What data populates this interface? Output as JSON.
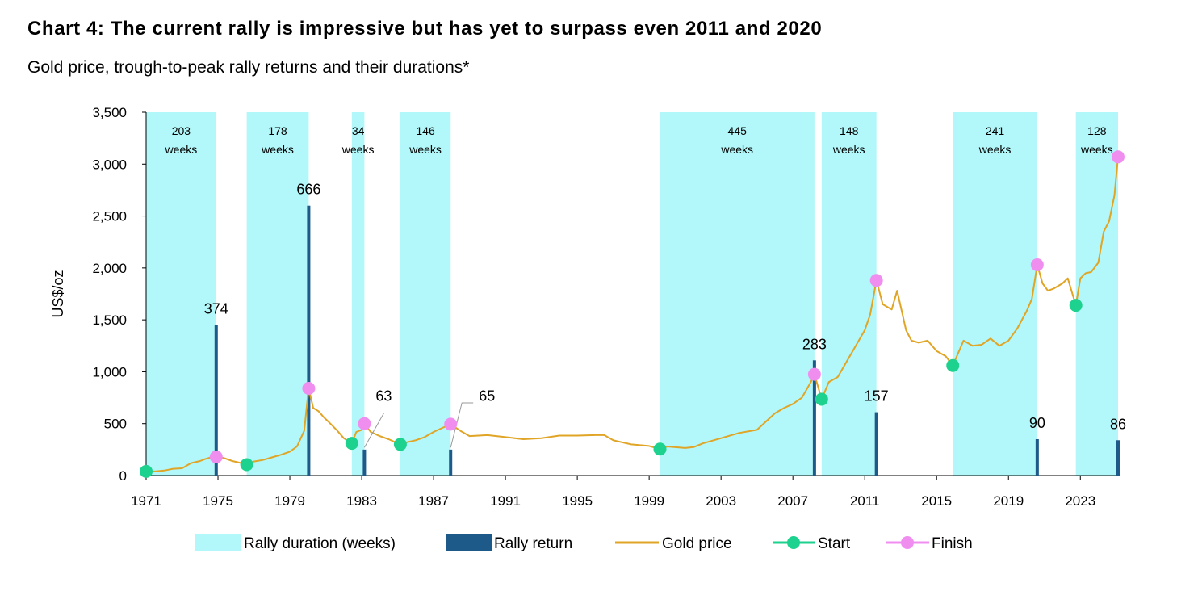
{
  "chart_data": {
    "type": "line",
    "title": "Chart 4: The current rally is impressive but has yet to surpass even 2011 and 2020",
    "subtitle": "Gold price, trough-to-peak rally returns and their durations*",
    "ylabel": "US$/oz",
    "xlabel": "",
    "ylim": [
      0,
      3500
    ],
    "yticks": [
      "0",
      "500",
      "1,000",
      "1,500",
      "2,000",
      "2,500",
      "3,000",
      "3,500"
    ],
    "xlim": [
      1971,
      2025.1
    ],
    "xticks": [
      "1971",
      "1975",
      "1979",
      "1983",
      "1987",
      "1991",
      "1995",
      "1999",
      "2003",
      "2007",
      "2011",
      "2015",
      "2019",
      "2023"
    ],
    "colors": {
      "rally_duration": "#b2f7f9",
      "rally_return": "#1d5a8a",
      "gold_price": "#e0a526",
      "start": "#1dd18e",
      "finish": "#f08ef0"
    },
    "legend": {
      "position": "bottom",
      "items": [
        "Rally duration (weeks)",
        "Rally return",
        "Gold price",
        "Start",
        "Finish"
      ]
    },
    "rallies": [
      {
        "start": 1971.0,
        "end": 1974.9,
        "duration_line1": "203",
        "duration_line2": "weeks",
        "return_label": "374",
        "return_bar_value": 1450,
        "start_price": 40,
        "finish_price": 180
      },
      {
        "start": 1976.6,
        "end": 1980.05,
        "duration_line1": "178",
        "duration_line2": "weeks",
        "return_label": "666",
        "return_bar_value": 2600,
        "start_price": 105,
        "finish_price": 840
      },
      {
        "start": 1982.45,
        "end": 1983.15,
        "duration_line1": "34",
        "duration_line2": "weeks",
        "return_label": "63",
        "return_bar_value": 250,
        "start_price": 310,
        "finish_price": 500
      },
      {
        "start": 1985.15,
        "end": 1987.95,
        "duration_line1": "146",
        "duration_line2": "weeks",
        "return_label": "65",
        "return_bar_value": 250,
        "start_price": 300,
        "finish_price": 495
      },
      {
        "start": 1999.6,
        "end": 2008.2,
        "duration_line1": "445",
        "duration_line2": "weeks",
        "return_label": "283",
        "return_bar_value": 1110,
        "start_price": 255,
        "finish_price": 975
      },
      {
        "start": 2008.6,
        "end": 2011.65,
        "duration_line1": "148",
        "duration_line2": "weeks",
        "return_label": "157",
        "return_bar_value": 610,
        "start_price": 735,
        "finish_price": 1880
      },
      {
        "start": 2015.9,
        "end": 2020.6,
        "duration_line1": "241",
        "duration_line2": "weeks",
        "return_label": "90",
        "return_bar_value": 350,
        "start_price": 1060,
        "finish_price": 2030
      },
      {
        "start": 2022.75,
        "end": 2025.1,
        "duration_line1": "128",
        "duration_line2": "weeks",
        "return_label": "86",
        "return_bar_value": 340,
        "start_price": 1640,
        "finish_price": 3070
      }
    ],
    "gold_price_series": {
      "x": [
        1971.0,
        1971.5,
        1972.0,
        1972.5,
        1973.0,
        1973.5,
        1974.0,
        1974.3,
        1974.6,
        1974.9,
        1975.3,
        1975.8,
        1976.3,
        1976.6,
        1977.0,
        1977.5,
        1978.0,
        1978.5,
        1979.0,
        1979.4,
        1979.8,
        1980.05,
        1980.3,
        1980.6,
        1980.9,
        1981.2,
        1981.6,
        1982.0,
        1982.45,
        1982.7,
        1983.0,
        1983.15,
        1983.5,
        1984.0,
        1984.5,
        1985.15,
        1985.5,
        1986.0,
        1986.5,
        1987.0,
        1987.5,
        1987.95,
        1988.5,
        1989.0,
        1990.0,
        1991.0,
        1992.0,
        1993.0,
        1994.0,
        1995.0,
        1996.0,
        1996.5,
        1997.0,
        1998.0,
        1999.0,
        1999.6,
        2000.0,
        2001.0,
        2001.5,
        2002.0,
        2003.0,
        2004.0,
        2005.0,
        2006.0,
        2006.5,
        2007.0,
        2007.5,
        2008.0,
        2008.2,
        2008.6,
        2009.0,
        2009.5,
        2010.0,
        2010.5,
        2011.0,
        2011.3,
        2011.65,
        2012.0,
        2012.5,
        2012.8,
        2013.3,
        2013.6,
        2014.0,
        2014.5,
        2015.0,
        2015.5,
        2015.9,
        2016.5,
        2017.0,
        2017.5,
        2018.0,
        2018.5,
        2019.0,
        2019.5,
        2020.0,
        2020.3,
        2020.6,
        2020.9,
        2021.2,
        2021.5,
        2022.0,
        2022.3,
        2022.75,
        2023.0,
        2023.3,
        2023.6,
        2024.0,
        2024.3,
        2024.6,
        2024.9,
        2025.1
      ],
      "y": [
        40,
        40,
        48,
        65,
        70,
        120,
        140,
        160,
        175,
        180,
        170,
        140,
        120,
        105,
        135,
        150,
        175,
        200,
        230,
        280,
        430,
        840,
        650,
        620,
        560,
        510,
        440,
        360,
        310,
        420,
        440,
        500,
        420,
        380,
        350,
        300,
        320,
        340,
        370,
        420,
        460,
        495,
        430,
        380,
        390,
        370,
        350,
        360,
        385,
        385,
        390,
        390,
        340,
        300,
        285,
        255,
        280,
        265,
        275,
        310,
        360,
        410,
        440,
        600,
        650,
        690,
        750,
        900,
        975,
        735,
        900,
        950,
        1100,
        1250,
        1400,
        1550,
        1880,
        1650,
        1600,
        1780,
        1400,
        1300,
        1280,
        1300,
        1200,
        1150,
        1060,
        1300,
        1250,
        1260,
        1320,
        1250,
        1300,
        1420,
        1580,
        1700,
        2030,
        1850,
        1780,
        1800,
        1850,
        1900,
        1640,
        1900,
        1950,
        1960,
        2050,
        2350,
        2450,
        2700,
        3070
      ]
    }
  }
}
